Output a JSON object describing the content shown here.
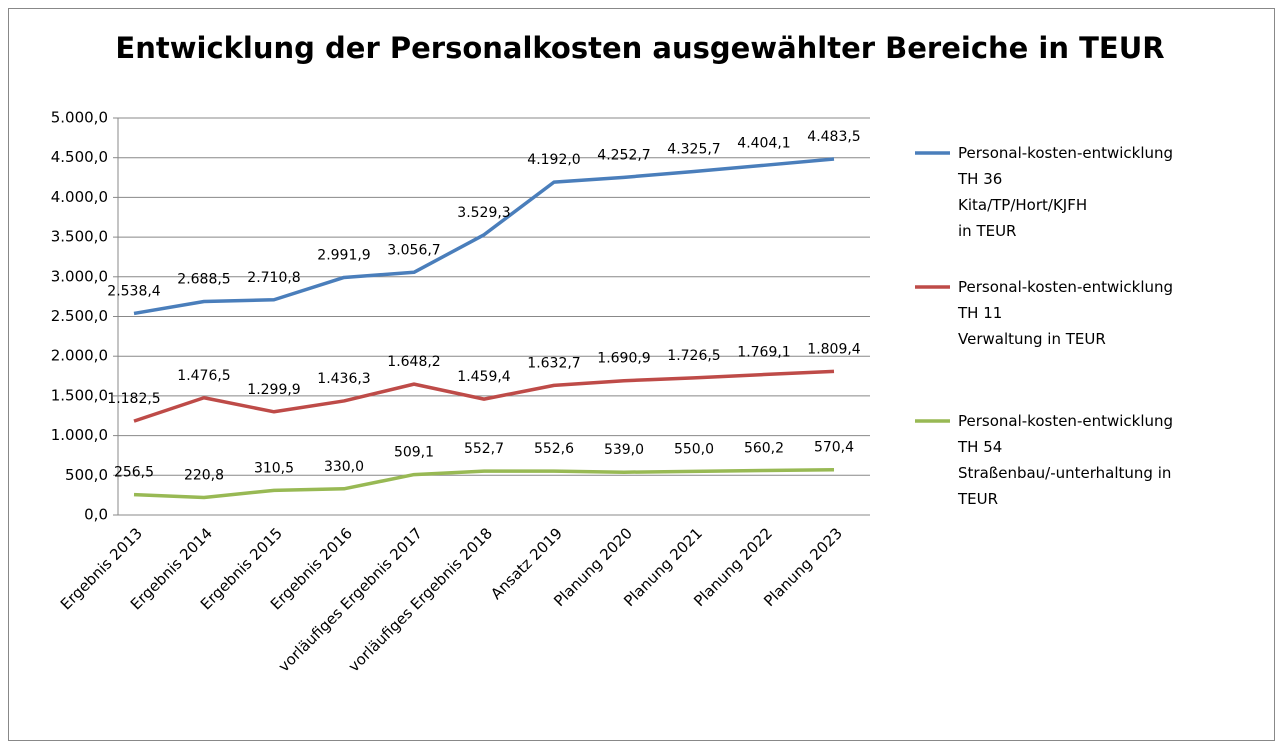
{
  "chart_data": {
    "type": "line",
    "title": "Entwicklung der Personalkosten ausgewählter Bereiche in TEUR",
    "categories": [
      "Ergebnis 2013",
      "Ergebnis 2014",
      "Ergebnis 2015",
      "Ergebnis 2016",
      "vorläufiges Ergebnis 2017",
      "vorläufiges Ergebnis 2018",
      "Ansatz 2019",
      "Planung 2020",
      "Planung 2021",
      "Planung 2022",
      "Planung 2023"
    ],
    "series": [
      {
        "name": "Personal-kosten-entwicklung\nTH 36\nKita/TP/Hort/KJFH\nin TEUR",
        "color": "#4a7ebb",
        "values": [
          2538.4,
          2688.5,
          2710.8,
          2991.9,
          3056.7,
          3529.3,
          4192.0,
          4252.7,
          4325.7,
          4404.1,
          4483.5
        ],
        "value_labels": [
          "2.538,4",
          "2.688,5",
          "2.710,8",
          "2.991,9",
          "3.056,7",
          "3.529,3",
          "4.192,0",
          "4.252,7",
          "4.325,7",
          "4.404,1",
          "4.483,5"
        ]
      },
      {
        "name": "Personal-kosten-entwicklung\nTH 11\nVerwaltung in TEUR",
        "color": "#be4b48",
        "values": [
          1182.5,
          1476.5,
          1299.9,
          1436.3,
          1648.2,
          1459.4,
          1632.7,
          1690.9,
          1726.5,
          1769.1,
          1809.4
        ],
        "value_labels": [
          "1.182,5",
          "1.476,5",
          "1.299,9",
          "1.436,3",
          "1.648,2",
          "1.459,4",
          "1.632,7",
          "1.690,9",
          "1.726,5",
          "1.769,1",
          "1.809,4"
        ]
      },
      {
        "name": "Personal-kosten-entwicklung\nTH 54\nStraßenbau/-unterhaltung in\nTEUR",
        "color": "#98b954",
        "values": [
          256.5,
          220.8,
          310.5,
          330.0,
          509.1,
          552.7,
          552.6,
          539.0,
          550.0,
          560.2,
          570.4
        ],
        "value_labels": [
          "256,5",
          "220,8",
          "310,5",
          "330,0",
          "509,1",
          "552,7",
          "552,6",
          "539,0",
          "550,0",
          "560,2",
          "570,4"
        ]
      }
    ],
    "ylim": [
      0,
      5000
    ],
    "yticks": [
      {
        "value": 0,
        "label": "0,0"
      },
      {
        "value": 500,
        "label": "500,0"
      },
      {
        "value": 1000,
        "label": "1.000,0"
      },
      {
        "value": 1500,
        "label": "1.500,0"
      },
      {
        "value": 2000,
        "label": "2.000,0"
      },
      {
        "value": 2500,
        "label": "2.500,0"
      },
      {
        "value": 3000,
        "label": "3.000,0"
      },
      {
        "value": 3500,
        "label": "3.500,0"
      },
      {
        "value": 4000,
        "label": "4.000,0"
      },
      {
        "value": 4500,
        "label": "4.500,0"
      },
      {
        "value": 5000,
        "label": "5.000,0"
      }
    ],
    "grid": true,
    "legend": "right"
  }
}
